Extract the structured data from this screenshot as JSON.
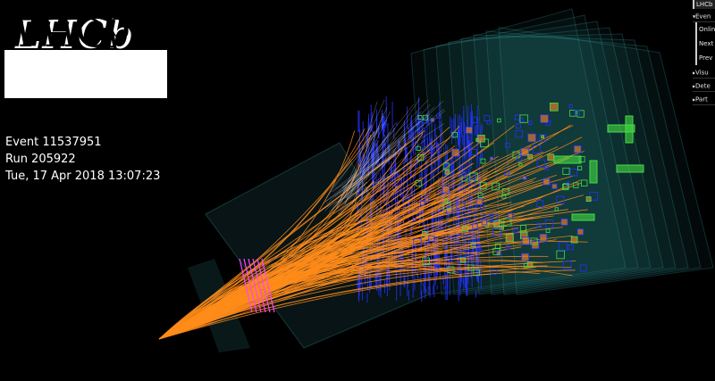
{
  "logo": {
    "text": "LHCb"
  },
  "event_info": {
    "event": "Event 11537951",
    "run": "Run 205922",
    "datetime": "Tue, 17 Apr 2018 13:07:23"
  },
  "menu": {
    "title": "LHCb",
    "sections": [
      {
        "label": "Even",
        "items": [
          "Onlin",
          "Next",
          "Prev"
        ]
      },
      {
        "label": "Visu"
      },
      {
        "label": "Dete"
      },
      {
        "label": "Part"
      }
    ]
  },
  "colors": {
    "background": "#000000",
    "tracks": "#ff8c1a",
    "calo_hits": "#2233ff",
    "muon_hits": "#44dd44",
    "hcal": "#e07a2a",
    "vertex": "#ff44ff",
    "detector": "#3fa8b0"
  }
}
